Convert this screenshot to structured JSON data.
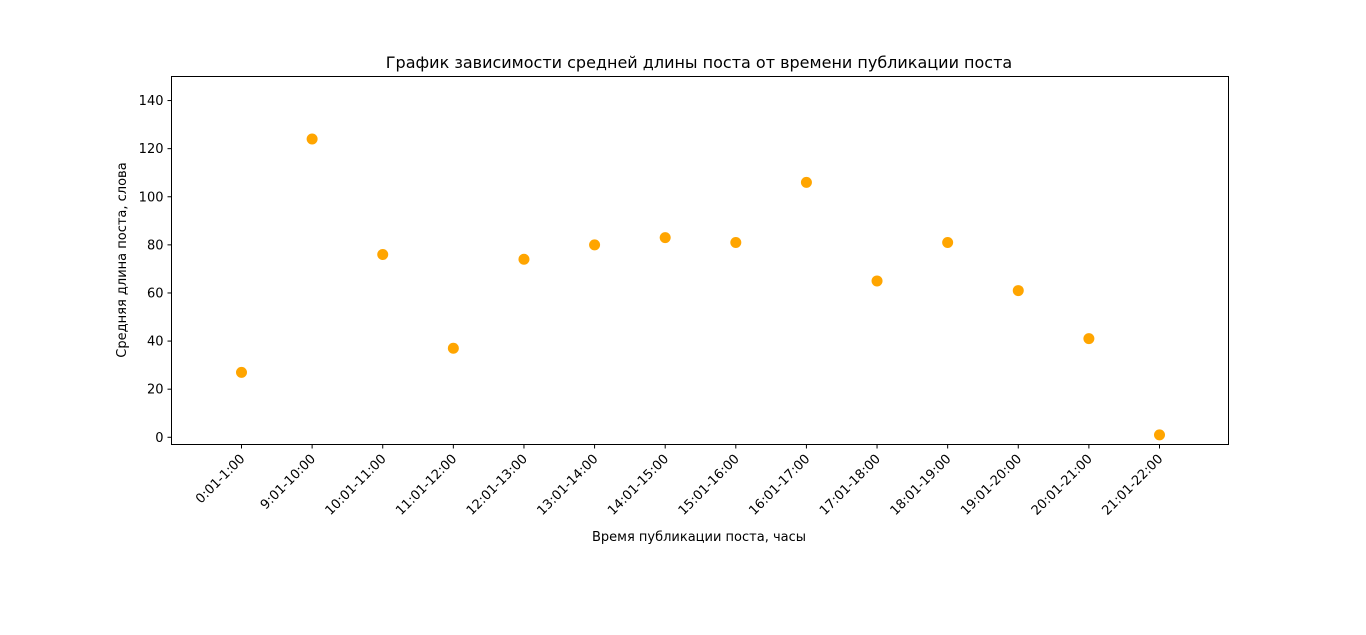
{
  "chart_data": {
    "type": "scatter",
    "title": "График зависимости средней длины поста от времени публикации поста",
    "xlabel": "Время публикации поста, часы",
    "ylabel": "Средняя длина поста, слова",
    "categories": [
      "0:01-1:00",
      "9:01-10:00",
      "10:01-11:00",
      "11:01-12:00",
      "12:01-13:00",
      "13:01-14:00",
      "14:01-15:00",
      "15:01-16:00",
      "16:01-17:00",
      "17:01-18:00",
      "18:01-19:00",
      "19:01-20:00",
      "20:01-21:00",
      "21:01-22:00"
    ],
    "values": [
      27,
      124,
      76,
      37,
      74,
      80,
      83,
      81,
      106,
      65,
      81,
      61,
      41,
      1
    ],
    "ylim": [
      -3,
      150
    ],
    "yticks": [
      0,
      20,
      40,
      60,
      80,
      100,
      120,
      140
    ],
    "grid": false,
    "marker_color": "#ffa500"
  }
}
